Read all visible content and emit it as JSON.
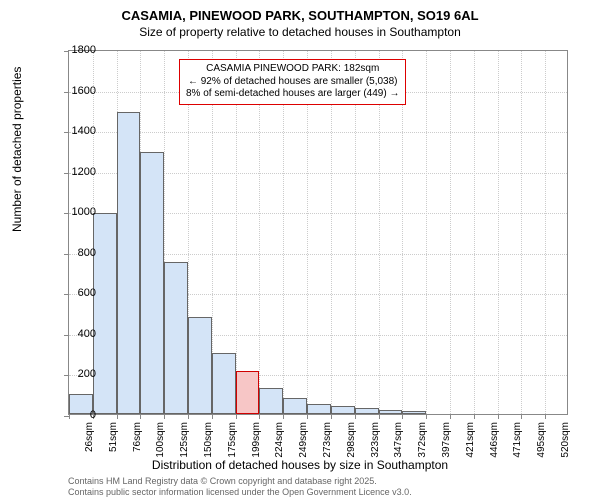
{
  "titles": {
    "main": "CASAMIA, PINEWOOD PARK, SOUTHAMPTON, SO19 6AL",
    "sub": "Size of property relative to detached houses in Southampton"
  },
  "ylabel": "Number of detached properties",
  "xlabel": "Distribution of detached houses by size in Southampton",
  "chart": {
    "type": "histogram",
    "ylim": [
      0,
      1800
    ],
    "ytick_step": 200,
    "background_color": "#ffffff",
    "grid_color": "#cccccc",
    "bar_fill": "#d4e4f7",
    "bar_stroke": "#666666",
    "highlight_fill": "#f7c6c6",
    "highlight_stroke": "#d00000",
    "categories": [
      "26sqm",
      "51sqm",
      "76sqm",
      "100sqm",
      "125sqm",
      "150sqm",
      "175sqm",
      "199sqm",
      "224sqm",
      "249sqm",
      "273sqm",
      "298sqm",
      "323sqm",
      "347sqm",
      "372sqm",
      "397sqm",
      "421sqm",
      "446sqm",
      "471sqm",
      "495sqm",
      "520sqm"
    ],
    "values": [
      100,
      990,
      1490,
      1290,
      750,
      480,
      300,
      210,
      130,
      80,
      50,
      40,
      30,
      20,
      15,
      0,
      0,
      0,
      0,
      0,
      0
    ],
    "highlight_index": 7
  },
  "annotation": {
    "line1": "CASAMIA PINEWOOD PARK: 182sqm",
    "line2": "← 92% of detached houses are smaller (5,038)",
    "line3": "8% of semi-detached houses are larger (449) →"
  },
  "footer": {
    "line1": "Contains HM Land Registry data © Crown copyright and database right 2025.",
    "line2": "Contains public sector information licensed under the Open Government Licence v3.0."
  }
}
